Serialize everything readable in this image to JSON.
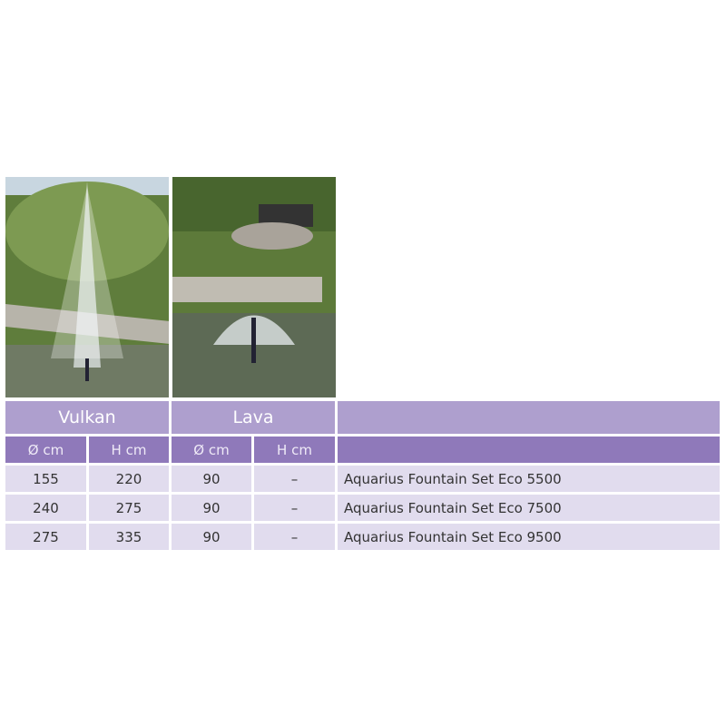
{
  "table": {
    "groups": [
      "Vulkan",
      "Lava",
      ""
    ],
    "subheaders": [
      "Ø cm",
      "H cm",
      "Ø cm",
      "H cm",
      ""
    ],
    "rows": [
      [
        "155",
        "220",
        "90",
        "–",
        "Aquarius Fountain Set Eco 5500"
      ],
      [
        "240",
        "275",
        "90",
        "–",
        "Aquarius Fountain Set Eco 7500"
      ],
      [
        "275",
        "335",
        "90",
        "–",
        "Aquarius Fountain Set Eco 9500"
      ]
    ]
  },
  "colors": {
    "group_header": "#ae9fce",
    "sub_header": "#8f79ba",
    "row": "#e1dcee"
  }
}
